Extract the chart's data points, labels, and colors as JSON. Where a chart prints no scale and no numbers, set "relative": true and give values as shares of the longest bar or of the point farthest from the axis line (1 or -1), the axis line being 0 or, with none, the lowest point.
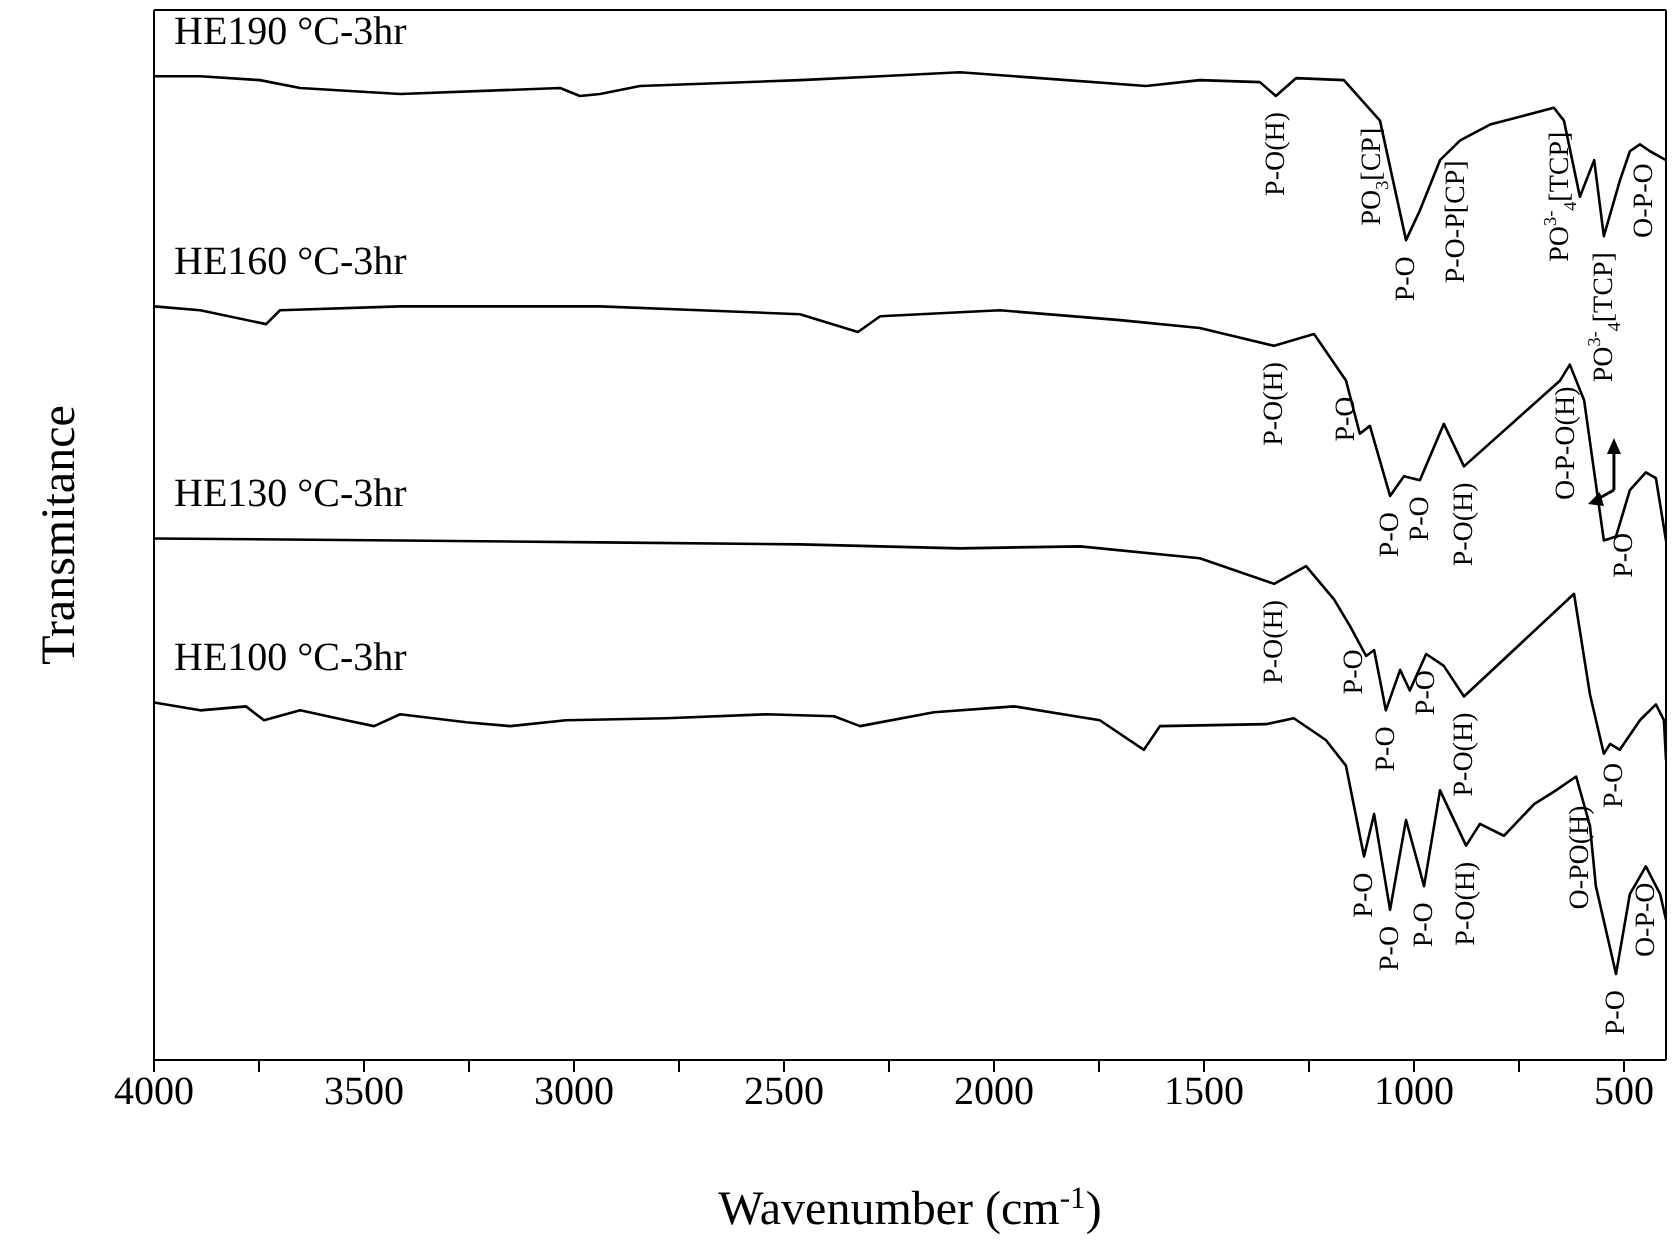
{
  "chart_data": {
    "type": "line",
    "relative": true,
    "xlabel": "Wavenumber (cm$^{-1}$)",
    "ylabel": "Transmitance",
    "xlim": [
      4000,
      400
    ],
    "xticks": [
      4000,
      {
        "value": 3750,
        "label": null
      },
      3500,
      {
        "value": 3250,
        "label": null
      },
      3000,
      {
        "value": 2750,
        "label": null
      },
      2500,
      {
        "value": 2250,
        "label": null
      },
      2000,
      {
        "value": 1750,
        "label": null
      },
      1500,
      {
        "value": 1250,
        "label": null
      },
      1000,
      {
        "value": 750,
        "label": null
      },
      500
    ],
    "marker": "none",
    "line_style": "solid",
    "series": [
      {
        "name": "HE190 °C-3hr",
        "color": "#000000",
        "x": [
          4000,
          3890,
          3748,
          3652,
          3414,
          3033,
          2986,
          2938,
          2843,
          2462,
          2271,
          2081,
          1638,
          1510,
          1367,
          1329,
          1281,
          1167,
          1081,
          1019,
          986,
          938,
          890,
          819,
          748,
          667,
          643,
          605,
          571,
          548,
          510,
          486,
          462,
          438,
          400
        ],
        "values": [
          0.996,
          0.996,
          0.992,
          0.984,
          0.978,
          0.984,
          0.976,
          0.978,
          0.986,
          0.992,
          0.996,
          1,
          0.986,
          0.992,
          0.99,
          0.976,
          0.994,
          0.992,
          0.951,
          0.83,
          0.86,
          0.911,
          0.931,
          0.947,
          0.955,
          0.964,
          0.951,
          0.874,
          0.911,
          0.834,
          0.89,
          0.92,
          0.927,
          0.92,
          0.911
        ]
      },
      {
        "name": "HE160 °C-3hr",
        "color": "#000000",
        "x": [
          4000,
          3890,
          3733,
          3700,
          3414,
          2938,
          2700,
          2462,
          2324,
          2271,
          1986,
          1700,
          1510,
          1333,
          1238,
          1162,
          1129,
          1105,
          1057,
          1024,
          986,
          929,
          881,
          652,
          629,
          595,
          548,
          519,
          486,
          448,
          424,
          400
        ],
        "values": [
          0.763,
          0.759,
          0.745,
          0.759,
          0.763,
          0.763,
          0.759,
          0.755,
          0.737,
          0.753,
          0.759,
          0.749,
          0.741,
          0.723,
          0.735,
          0.688,
          0.634,
          0.642,
          0.571,
          0.591,
          0.587,
          0.644,
          0.601,
          0.688,
          0.704,
          0.668,
          0.526,
          0.53,
          0.577,
          0.595,
          0.589,
          0.526
        ]
      },
      {
        "name": "HE130 °C-3hr",
        "color": "#000000",
        "x": [
          4000,
          3414,
          2938,
          2462,
          2081,
          1795,
          1510,
          1333,
          1257,
          1190,
          1152,
          1114,
          1095,
          1067,
          1033,
          1010,
          971,
          929,
          881,
          619,
          581,
          548,
          533,
          510,
          462,
          424,
          405,
          400
        ],
        "values": [
          0.528,
          0.526,
          0.524,
          0.522,
          0.518,
          0.52,
          0.508,
          0.482,
          0.5,
          0.466,
          0.439,
          0.409,
          0.415,
          0.354,
          0.395,
          0.374,
          0.411,
          0.399,
          0.368,
          0.472,
          0.37,
          0.31,
          0.32,
          0.314,
          0.344,
          0.36,
          0.344,
          0.304
        ]
      },
      {
        "name": "HE100 °C-3hr",
        "color": "#000000",
        "x": [
          4000,
          3890,
          3781,
          3738,
          3652,
          3543,
          3476,
          3414,
          3257,
          3152,
          3019,
          2781,
          2543,
          2381,
          2319,
          2143,
          1952,
          1748,
          1643,
          1605,
          1352,
          1286,
          1210,
          1162,
          1119,
          1095,
          1057,
          1019,
          976,
          938,
          876,
          843,
          786,
          714,
          662,
          614,
          581,
          567,
          519,
          486,
          448,
          414,
          400
        ],
        "values": [
          0.362,
          0.354,
          0.358,
          0.344,
          0.354,
          0.344,
          0.338,
          0.35,
          0.342,
          0.338,
          0.344,
          0.346,
          0.35,
          0.348,
          0.338,
          0.352,
          0.358,
          0.344,
          0.314,
          0.338,
          0.34,
          0.346,
          0.324,
          0.298,
          0.206,
          0.249,
          0.152,
          0.243,
          0.176,
          0.273,
          0.217,
          0.239,
          0.227,
          0.259,
          0.273,
          0.287,
          0.237,
          0.176,
          0.087,
          0.168,
          0.196,
          0.168,
          0.142
        ]
      }
    ],
    "annotations": [
      {
        "text": "P-O(H)",
        "x": 1329,
        "y": 0.976
      },
      {
        "text": "PO$_{3}$[CP]",
        "x": 1100,
        "y": 0.96
      },
      {
        "text": "P-O",
        "x": 1019,
        "y": 0.83
      },
      {
        "text": "P-O-P[CP]",
        "x": 900,
        "y": 0.927
      },
      {
        "text": "PO$^{3-}$$_{4}$[TCP]",
        "x": 652,
        "y": 0.956
      },
      {
        "text": "PO$^{3-}$$_{4}$[TCP]",
        "x": 548,
        "y": 0.834
      },
      {
        "text": "O-P-O",
        "x": 452,
        "y": 0.924
      },
      {
        "text": "P-O(H)",
        "x": 1333,
        "y": 0.723
      },
      {
        "text": "P-O",
        "x": 1162,
        "y": 0.688
      },
      {
        "text": "P-O",
        "x": 1057,
        "y": 0.571
      },
      {
        "text": "P-O",
        "x": 986,
        "y": 0.587
      },
      {
        "text": "P-O(H)",
        "x": 881,
        "y": 0.601
      },
      {
        "text": "O-P-O(H)",
        "x": 638,
        "y": 0.698
      },
      {
        "text": "P-O",
        "x": 500,
        "y": 0.55
      },
      {
        "text": "P-O(H)",
        "x": 1333,
        "y": 0.482
      },
      {
        "text": "P-O",
        "x": 1143,
        "y": 0.432
      },
      {
        "text": "P-O",
        "x": 1067,
        "y": 0.354
      },
      {
        "text": "P-O",
        "x": 971,
        "y": 0.411
      },
      {
        "text": "P-O(H)",
        "x": 881,
        "y": 0.368
      },
      {
        "text": "P-O",
        "x": 524,
        "y": 0.317
      },
      {
        "text": "P-O",
        "x": 1119,
        "y": 0.206
      },
      {
        "text": "P-O",
        "x": 1057,
        "y": 0.152
      },
      {
        "text": "P-O",
        "x": 976,
        "y": 0.176
      },
      {
        "text": "P-O(H)",
        "x": 876,
        "y": 0.217
      },
      {
        "text": "O-PO(H)",
        "x": 605,
        "y": 0.274
      },
      {
        "text": "P-O",
        "x": 519,
        "y": 0.087
      },
      {
        "text": "O-P-O",
        "x": 448,
        "y": 0.196
      }
    ]
  }
}
